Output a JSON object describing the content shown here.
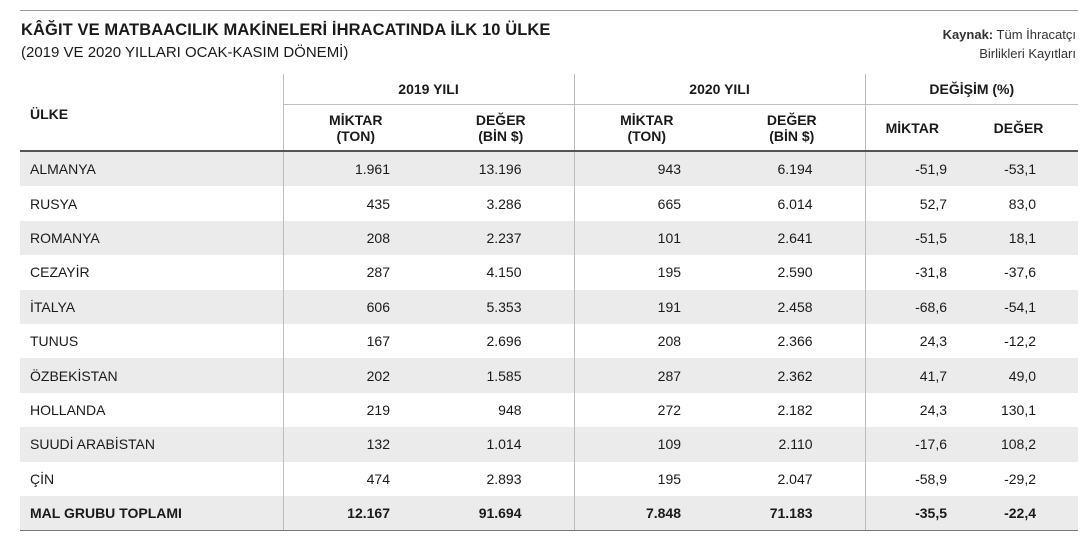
{
  "header": {
    "title": "KÂĞIT VE MATBAACILIK MAKİNELERİ İHRACATINDA İLK 10 ÜLKE",
    "subtitle": "(2019 VE 2020 YILLARI OCAK-KASIM DÖNEMİ)",
    "source_label": "Kaynak:",
    "source_line1": "Tüm İhracatçı",
    "source_line2": "Birlikleri Kayıtları"
  },
  "table": {
    "col_country": "ÜLKE",
    "group_2019": "2019 YILI",
    "group_2020": "2020 YILI",
    "group_change": "DEĞİŞİM (%)",
    "miktar_line1": "MİKTAR",
    "miktar_line2": "(TON)",
    "deger_line1": "DEĞER",
    "deger_line2": "(BİN $)",
    "change_miktar": "MİKTAR",
    "change_deger": "DEĞER",
    "rows": [
      {
        "country": "ALMANYA",
        "m2019": "1.961",
        "v2019": "13.196",
        "m2020": "943",
        "v2020": "6.194",
        "dm": "-51,9",
        "dv": "-53,1"
      },
      {
        "country": "RUSYA",
        "m2019": "435",
        "v2019": "3.286",
        "m2020": "665",
        "v2020": "6.014",
        "dm": "52,7",
        "dv": "83,0"
      },
      {
        "country": "ROMANYA",
        "m2019": "208",
        "v2019": "2.237",
        "m2020": "101",
        "v2020": "2.641",
        "dm": "-51,5",
        "dv": "18,1"
      },
      {
        "country": "CEZAYİR",
        "m2019": "287",
        "v2019": "4.150",
        "m2020": "195",
        "v2020": "2.590",
        "dm": "-31,8",
        "dv": "-37,6"
      },
      {
        "country": "İTALYA",
        "m2019": "606",
        "v2019": "5.353",
        "m2020": "191",
        "v2020": "2.458",
        "dm": "-68,6",
        "dv": "-54,1"
      },
      {
        "country": "TUNUS",
        "m2019": "167",
        "v2019": "2.696",
        "m2020": "208",
        "v2020": "2.366",
        "dm": "24,3",
        "dv": "-12,2"
      },
      {
        "country": "ÖZBEKİSTAN",
        "m2019": "202",
        "v2019": "1.585",
        "m2020": "287",
        "v2020": "2.362",
        "dm": "41,7",
        "dv": "49,0"
      },
      {
        "country": "HOLLANDA",
        "m2019": "219",
        "v2019": "948",
        "m2020": "272",
        "v2020": "2.182",
        "dm": "24,3",
        "dv": "130,1"
      },
      {
        "country": "SUUDİ ARABİSTAN",
        "m2019": "132",
        "v2019": "1.014",
        "m2020": "109",
        "v2020": "2.110",
        "dm": "-17,6",
        "dv": "108,2"
      },
      {
        "country": "ÇİN",
        "m2019": "474",
        "v2019": "2.893",
        "m2020": "195",
        "v2020": "2.047",
        "dm": "-58,9",
        "dv": "-29,2"
      }
    ],
    "total": {
      "country": "MAL GRUBU TOPLAMI",
      "m2019": "12.167",
      "v2019": "91.694",
      "m2020": "7.848",
      "v2020": "71.183",
      "dm": "-35,5",
      "dv": "-22,4"
    }
  }
}
